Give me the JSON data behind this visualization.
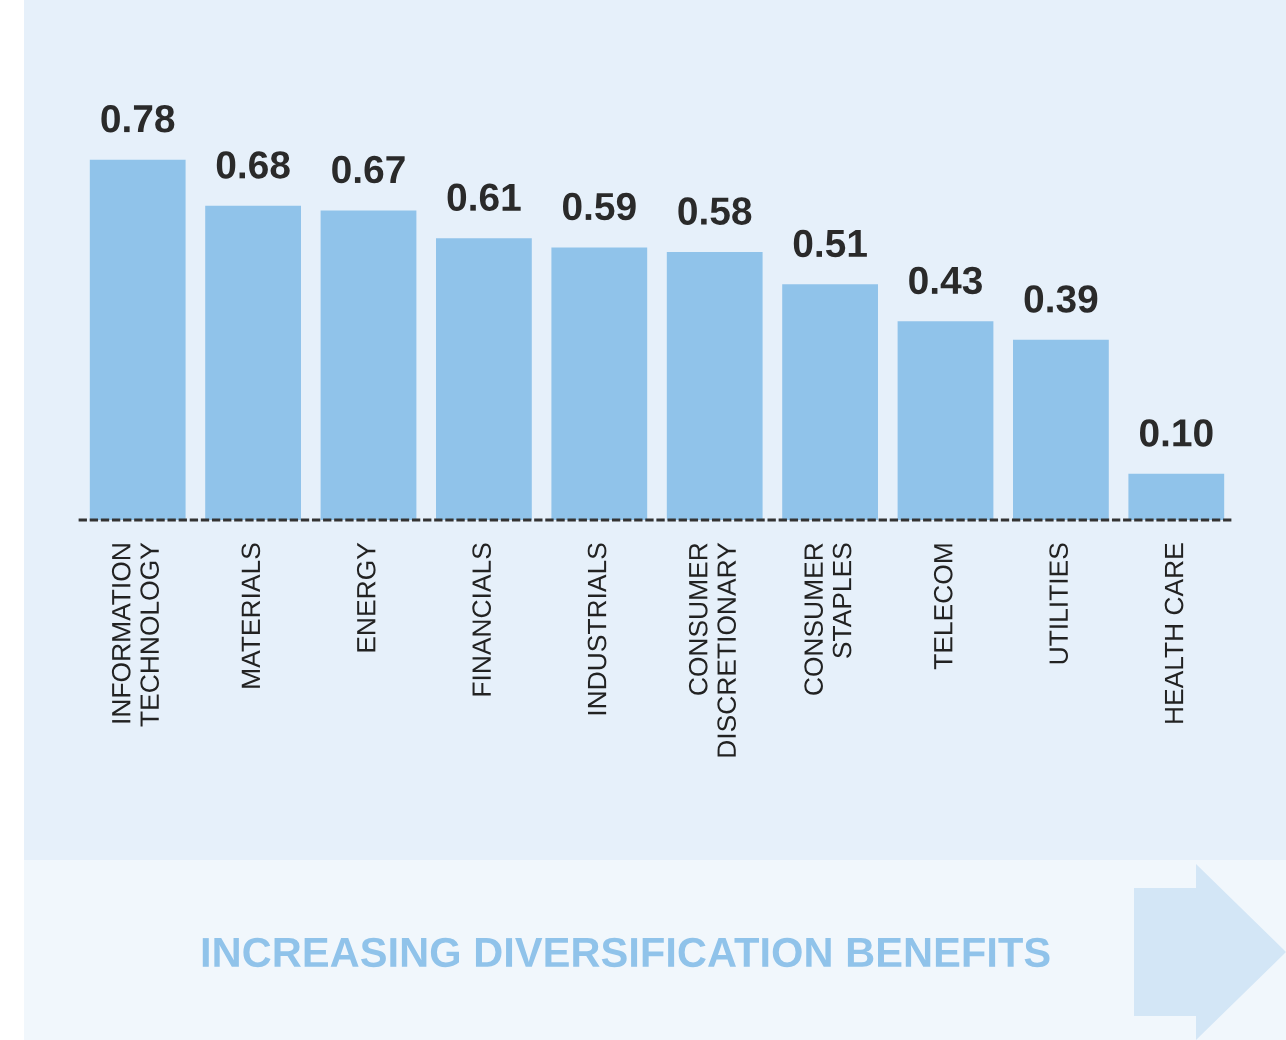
{
  "chart_data": {
    "type": "bar",
    "categories": [
      "INFORMATION\nTECHNOLOGY",
      "MATERIALS",
      "ENERGY",
      "FINANCIALS",
      "INDUSTRIALS",
      "CONSUMER\nDISCRETIONARY",
      "CONSUMER\nSTAPLES",
      "TELECOM",
      "UTILITIES",
      "HEALTH CARE"
    ],
    "values": [
      0.78,
      0.68,
      0.67,
      0.61,
      0.59,
      0.58,
      0.51,
      0.43,
      0.39,
      0.1
    ],
    "color": "#90c3ea",
    "value_labels": [
      "0.78",
      "0.68",
      "0.67",
      "0.61",
      "0.59",
      "0.58",
      "0.51",
      "0.43",
      "0.39",
      "0.10"
    ],
    "grid": false,
    "legend": false,
    "annotations": [
      "INCREASING DIVERSIFICATION BENEFITS"
    ]
  }
}
